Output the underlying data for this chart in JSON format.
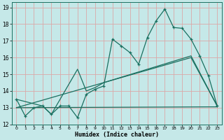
{
  "xlabel": "Humidex (Indice chaleur)",
  "bg_color": "#c5e8e8",
  "grid_color": "#dba8a8",
  "line_color": "#1a7060",
  "xlim": [
    -0.5,
    23.5
  ],
  "ylim": [
    12,
    19.3
  ],
  "yticks": [
    12,
    13,
    14,
    15,
    16,
    17,
    18,
    19
  ],
  "xticks": [
    0,
    1,
    2,
    3,
    4,
    5,
    6,
    7,
    8,
    9,
    10,
    11,
    12,
    13,
    14,
    15,
    16,
    17,
    18,
    19,
    20,
    21,
    22,
    23
  ],
  "series1_x": [
    0,
    1,
    2,
    3,
    4,
    5,
    6,
    7,
    8,
    9,
    10,
    11,
    12,
    13,
    14,
    15,
    16,
    17,
    18,
    19,
    20,
    21,
    22,
    23
  ],
  "series1_y": [
    13.5,
    12.5,
    13.0,
    13.1,
    12.6,
    13.1,
    13.1,
    12.4,
    13.8,
    14.1,
    14.3,
    17.1,
    16.7,
    16.3,
    15.6,
    17.2,
    18.2,
    18.9,
    17.8,
    17.75,
    17.1,
    16.1,
    14.9,
    13.1
  ],
  "series2_x": [
    0,
    3,
    4,
    7,
    8,
    9,
    10,
    20,
    23
  ],
  "series2_y": [
    13.5,
    13.1,
    12.6,
    15.3,
    14.0,
    14.2,
    14.5,
    16.1,
    13.1
  ],
  "series3_x": [
    0,
    23
  ],
  "series3_y": [
    13.0,
    13.05
  ],
  "series4_x": [
    0,
    20,
    23
  ],
  "series4_y": [
    13.0,
    16.0,
    13.1
  ]
}
